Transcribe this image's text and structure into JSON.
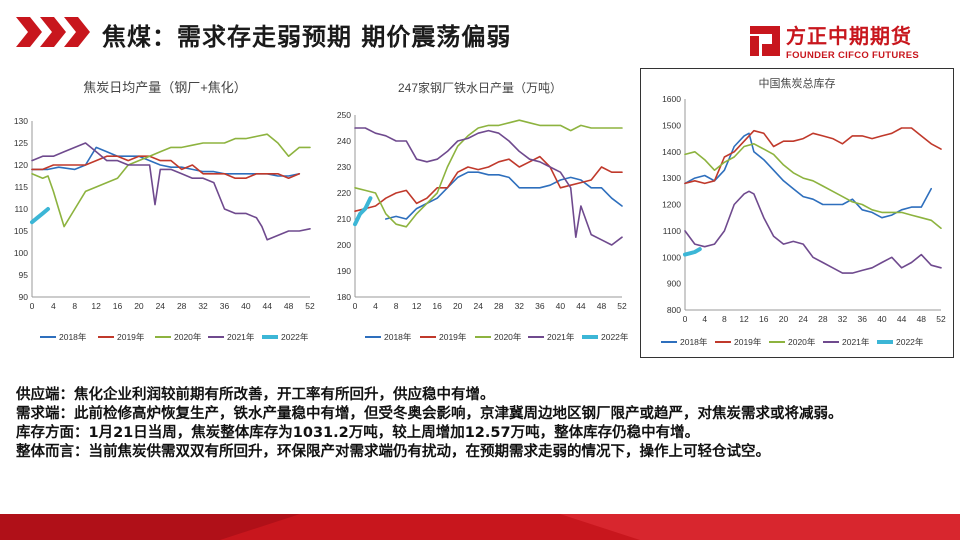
{
  "header": {
    "title": "焦煤：需求存走弱预期  期价震荡偏弱",
    "logo_cn": "方正中期期货",
    "logo_en": "FOUNDER CIFCO FUTURES",
    "accent": "#c8161d"
  },
  "chart_data": [
    {
      "type": "line",
      "title": "焦炭日均产量（钢厂+焦化）",
      "ylim": [
        90,
        130
      ],
      "yticks": [
        "90",
        "95",
        "100",
        "105",
        "110",
        "115",
        "120",
        "125",
        "130"
      ],
      "xticks": [
        "0",
        "4",
        "8",
        "12",
        "16",
        "20",
        "24",
        "28",
        "32",
        "36",
        "40",
        "44",
        "48",
        "52"
      ],
      "legend": [
        "2018年",
        "2019年",
        "2020年",
        "2021年",
        "2022年"
      ],
      "series": [
        {
          "name": "2018年",
          "color": "#2e6fbd",
          "x": [
            0,
            3,
            5,
            8,
            10,
            12,
            14,
            16,
            18,
            20,
            22,
            24,
            26,
            28,
            30,
            32,
            34,
            36,
            38,
            40,
            42,
            44,
            46,
            48,
            50
          ],
          "values": [
            119,
            119,
            119.5,
            119,
            120,
            124,
            123,
            122,
            122,
            122,
            121,
            120,
            119.5,
            119.5,
            119,
            118.5,
            118.5,
            118,
            118,
            118,
            118,
            118,
            117.5,
            117.5,
            118
          ]
        },
        {
          "name": "2019年",
          "color": "#c0392b",
          "x": [
            0,
            2,
            4,
            6,
            8,
            10,
            12,
            14,
            16,
            18,
            20,
            22,
            24,
            26,
            28,
            30,
            32,
            34,
            36,
            38,
            40,
            42,
            44,
            46,
            48,
            50
          ],
          "values": [
            119,
            119,
            120,
            120,
            120,
            120,
            121,
            122,
            122,
            121,
            122,
            122,
            121,
            121,
            119,
            120,
            118,
            118,
            118,
            117,
            117,
            118,
            118,
            118,
            117,
            118
          ]
        },
        {
          "name": "2020年",
          "color": "#8db33f",
          "x": [
            0,
            2,
            3,
            4,
            5,
            6,
            8,
            10,
            12,
            14,
            16,
            18,
            20,
            22,
            24,
            26,
            28,
            30,
            32,
            34,
            36,
            38,
            40,
            42,
            44,
            46,
            48,
            50,
            52
          ],
          "values": [
            118,
            117,
            117.5,
            114,
            110,
            106,
            110,
            114,
            115,
            116,
            117,
            120,
            121,
            122,
            123,
            124,
            124,
            124.5,
            125,
            125,
            125,
            126,
            126,
            126.5,
            127,
            125,
            122,
            124,
            124
          ]
        },
        {
          "name": "2021年",
          "color": "#6f4a8e",
          "x": [
            0,
            2,
            4,
            6,
            8,
            10,
            12,
            14,
            16,
            18,
            20,
            22,
            23,
            24,
            26,
            28,
            30,
            32,
            34,
            36,
            38,
            40,
            42,
            43,
            44,
            46,
            48,
            50,
            52
          ],
          "values": [
            121,
            122,
            122,
            123,
            124,
            125,
            123,
            121,
            121,
            120,
            120,
            120,
            111,
            119,
            119,
            118,
            117,
            117,
            116,
            110,
            109,
            109,
            108,
            106,
            103,
            104,
            105,
            105,
            105.5
          ]
        },
        {
          "name": "2022年",
          "color": "#3cb6d6",
          "x": [
            0,
            1,
            2,
            3
          ],
          "values": [
            107,
            108,
            109,
            110
          ]
        }
      ]
    },
    {
      "type": "line",
      "title": "247家钢厂铁水日产量（万吨）",
      "ylim": [
        180,
        250
      ],
      "yticks": [
        "180",
        "190",
        "200",
        "210",
        "220",
        "230",
        "240",
        "250"
      ],
      "xticks": [
        "0",
        "4",
        "8",
        "12",
        "16",
        "20",
        "24",
        "28",
        "32",
        "36",
        "40",
        "44",
        "48",
        "52"
      ],
      "legend": [
        "2018年",
        "2019年",
        "2020年",
        "2021年",
        "2022年"
      ],
      "series": [
        {
          "name": "2018年",
          "color": "#2e6fbd",
          "x": [
            6,
            8,
            10,
            12,
            14,
            16,
            18,
            20,
            22,
            24,
            26,
            28,
            30,
            32,
            34,
            36,
            38,
            40,
            42,
            44,
            46,
            48,
            50,
            52
          ],
          "values": [
            210,
            211,
            210,
            214,
            216,
            218,
            222,
            226,
            228,
            228,
            227,
            227,
            226,
            222,
            222,
            222,
            223,
            225,
            226,
            225,
            222,
            222,
            218,
            215
          ]
        },
        {
          "name": "2019年",
          "color": "#c0392b",
          "x": [
            0,
            2,
            4,
            6,
            8,
            10,
            12,
            14,
            16,
            18,
            20,
            22,
            24,
            26,
            28,
            30,
            32,
            34,
            36,
            38,
            40,
            42,
            44,
            46,
            48,
            50,
            52
          ],
          "values": [
            213,
            214,
            215,
            218,
            220,
            221,
            216,
            218,
            222,
            222,
            228,
            230,
            229,
            230,
            232,
            233,
            230,
            232,
            234,
            230,
            222,
            223,
            224,
            225,
            230,
            228,
            228
          ]
        },
        {
          "name": "2020年",
          "color": "#8db33f",
          "x": [
            0,
            2,
            4,
            6,
            8,
            10,
            12,
            14,
            16,
            18,
            20,
            22,
            24,
            26,
            28,
            30,
            32,
            34,
            36,
            38,
            40,
            42,
            44,
            46,
            48,
            50,
            52
          ],
          "values": [
            222,
            221,
            220,
            212,
            208,
            207,
            212,
            216,
            220,
            230,
            238,
            242,
            245,
            246,
            246,
            247,
            248,
            247,
            246,
            246,
            246,
            244,
            246,
            245,
            245,
            245,
            245
          ]
        },
        {
          "name": "2021年",
          "color": "#6f4a8e",
          "x": [
            0,
            2,
            4,
            6,
            8,
            10,
            12,
            14,
            16,
            18,
            20,
            22,
            24,
            26,
            28,
            30,
            32,
            34,
            36,
            38,
            40,
            42,
            43,
            44,
            46,
            48,
            50,
            52
          ],
          "values": [
            245,
            245,
            243,
            242,
            240,
            240,
            233,
            232,
            233,
            236,
            240,
            241,
            243,
            244,
            243,
            240,
            236,
            233,
            232,
            230,
            228,
            222,
            203,
            215,
            204,
            202,
            200,
            203
          ]
        },
        {
          "name": "2022年",
          "color": "#3cb6d6",
          "x": [
            0,
            1,
            2,
            3
          ],
          "values": [
            208,
            212,
            214,
            218
          ]
        }
      ]
    },
    {
      "type": "line",
      "title": "中国焦炭总库存",
      "ylim": [
        800,
        1600
      ],
      "yticks": [
        "800",
        "900",
        "1000",
        "1100",
        "1200",
        "1300",
        "1400",
        "1500",
        "1600"
      ],
      "xticks": [
        "0",
        "4",
        "8",
        "12",
        "16",
        "20",
        "24",
        "28",
        "32",
        "36",
        "40",
        "44",
        "48",
        "52"
      ],
      "legend": [
        "2018年",
        "2019年",
        "2020年",
        "2021年",
        "2022年"
      ],
      "series": [
        {
          "name": "2018年",
          "color": "#2e6fbd",
          "x": [
            0,
            2,
            4,
            6,
            8,
            10,
            12,
            13,
            14,
            16,
            18,
            20,
            22,
            24,
            26,
            28,
            30,
            32,
            34,
            36,
            38,
            40,
            42,
            44,
            46,
            48,
            50
          ],
          "values": [
            1280,
            1300,
            1310,
            1290,
            1330,
            1420,
            1460,
            1470,
            1400,
            1370,
            1330,
            1290,
            1260,
            1230,
            1220,
            1200,
            1200,
            1200,
            1220,
            1180,
            1170,
            1150,
            1160,
            1180,
            1190,
            1190,
            1260
          ]
        },
        {
          "name": "2019年",
          "color": "#c0392b",
          "x": [
            0,
            2,
            4,
            6,
            8,
            10,
            12,
            14,
            16,
            18,
            20,
            22,
            24,
            26,
            28,
            30,
            32,
            34,
            36,
            38,
            40,
            42,
            44,
            46,
            48,
            50,
            52
          ],
          "values": [
            1280,
            1290,
            1280,
            1290,
            1380,
            1400,
            1440,
            1480,
            1470,
            1420,
            1440,
            1440,
            1450,
            1470,
            1460,
            1450,
            1430,
            1460,
            1460,
            1450,
            1460,
            1470,
            1490,
            1490,
            1460,
            1430,
            1410
          ]
        },
        {
          "name": "2020年",
          "color": "#8db33f",
          "x": [
            0,
            2,
            4,
            6,
            8,
            10,
            12,
            14,
            16,
            18,
            20,
            22,
            24,
            26,
            28,
            30,
            32,
            34,
            36,
            38,
            40,
            42,
            44,
            46,
            48,
            50,
            52
          ],
          "values": [
            1390,
            1400,
            1370,
            1330,
            1360,
            1380,
            1420,
            1430,
            1410,
            1390,
            1350,
            1320,
            1300,
            1290,
            1270,
            1250,
            1230,
            1210,
            1200,
            1180,
            1170,
            1170,
            1170,
            1160,
            1150,
            1140,
            1110
          ]
        },
        {
          "name": "2021年",
          "color": "#6f4a8e",
          "x": [
            0,
            2,
            4,
            6,
            8,
            10,
            12,
            13,
            14,
            16,
            18,
            20,
            22,
            24,
            26,
            28,
            30,
            32,
            34,
            36,
            38,
            40,
            42,
            44,
            46,
            48,
            50,
            52
          ],
          "values": [
            1100,
            1050,
            1040,
            1050,
            1100,
            1200,
            1240,
            1250,
            1240,
            1150,
            1080,
            1050,
            1060,
            1050,
            1000,
            980,
            960,
            940,
            940,
            950,
            960,
            980,
            1000,
            960,
            980,
            1010,
            970,
            960
          ]
        },
        {
          "name": "2022年",
          "color": "#3cb6d6",
          "x": [
            0,
            2,
            3
          ],
          "values": [
            1010,
            1020,
            1031
          ]
        }
      ]
    }
  ],
  "body": {
    "lines": [
      "供应端：焦化企业利润较前期有所改善，开工率有所回升，供应稳中有增。",
      "需求端：此前检修高炉恢复生产，铁水产量稳中有增，但受冬奥会影响，京津冀周边地区钢厂限产或趋严，对焦炭需求或将减弱。",
      "库存方面：1月21日当周，焦炭整体库存为1031.2万吨，较上周增加12.57万吨，整体库存仍稳中有增。",
      "整体而言：当前焦炭供需双双有所回升，环保限产对需求端仍有扰动，在预期需求走弱的情况下，操作上可轻仓试空。"
    ]
  }
}
